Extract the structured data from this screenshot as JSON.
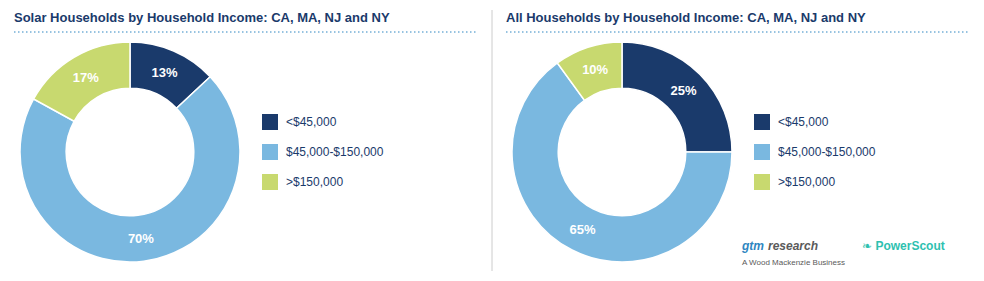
{
  "chart_data": [
    {
      "type": "donut",
      "title": "Solar Households by Household Income: CA, MA, NJ and NY",
      "categories": [
        "<$45,000",
        "$45,000-$150,000",
        ">$150,000"
      ],
      "values": [
        13,
        70,
        17
      ],
      "value_labels": [
        "13%",
        "70%",
        "17%"
      ],
      "colors": [
        "#1a3a6b",
        "#7ab8e0",
        "#c8d96f"
      ],
      "data_labels": true,
      "legend": "right"
    },
    {
      "type": "donut",
      "title": "All Households by Household Income: CA, MA, NJ and NY",
      "categories": [
        "<$45,000",
        "$45,000-$150,000",
        ">$150,000"
      ],
      "values": [
        25,
        65,
        10
      ],
      "value_labels": [
        "25%",
        "65%",
        "10%"
      ],
      "colors": [
        "#1a3a6b",
        "#7ab8e0",
        "#c8d96f"
      ],
      "data_labels": true,
      "legend": "right",
      "annotations": [
        "gtm",
        "research",
        "A Wood Mackenzie Business",
        "❧ PowerScout"
      ]
    }
  ]
}
